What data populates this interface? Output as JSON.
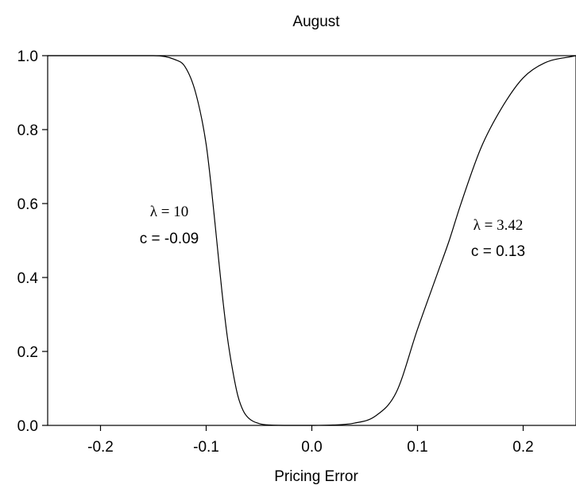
{
  "chart_data": {
    "type": "line",
    "title": "August",
    "xlabel": "Pricing Error",
    "ylabel": "",
    "xlim": [
      -0.25,
      0.25
    ],
    "ylim": [
      0.0,
      1.0
    ],
    "x_ticks": [
      "-0.2",
      "-0.1",
      "0.0",
      "0.1",
      "0.2"
    ],
    "x_tick_values": [
      -0.2,
      -0.1,
      0.0,
      0.1,
      0.2
    ],
    "y_ticks": [
      "0.0",
      "0.2",
      "0.4",
      "0.6",
      "0.8",
      "1.0"
    ],
    "y_tick_values": [
      0.0,
      0.2,
      0.4,
      0.6,
      0.8,
      1.0
    ],
    "grid": false,
    "series": [
      {
        "x": [
          -0.25,
          -0.2,
          -0.15,
          -0.13,
          -0.12,
          -0.11,
          -0.1,
          -0.095,
          -0.09,
          -0.085,
          -0.08,
          -0.075,
          -0.07,
          -0.065,
          -0.06,
          -0.05,
          -0.04,
          -0.02,
          0.0
        ],
        "values": [
          1.0,
          1.0,
          1.0,
          0.99,
          0.97,
          0.9,
          0.76,
          0.64,
          0.5,
          0.36,
          0.24,
          0.15,
          0.08,
          0.04,
          0.02,
          0.005,
          0.001,
          0.0,
          0.0
        ]
      },
      {
        "x": [
          0.0,
          0.02,
          0.04,
          0.06,
          0.08,
          0.1,
          0.12,
          0.13,
          0.14,
          0.16,
          0.18,
          0.2,
          0.22,
          0.25
        ],
        "values": [
          0.0,
          0.001,
          0.006,
          0.025,
          0.09,
          0.26,
          0.42,
          0.5,
          0.59,
          0.75,
          0.86,
          0.94,
          0.98,
          1.0
        ]
      }
    ],
    "annotations": [
      {
        "lambda": "λ = 10",
        "c": "c =  -0.09"
      },
      {
        "lambda": "λ = 3.42",
        "c": "c = 0.13"
      }
    ]
  }
}
